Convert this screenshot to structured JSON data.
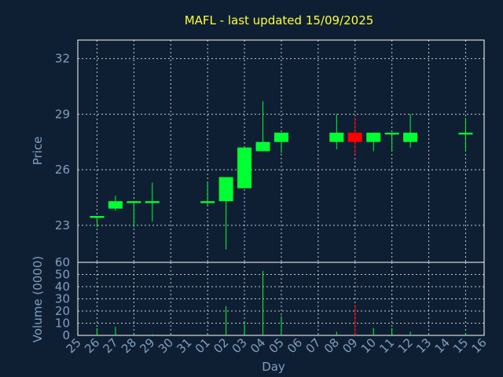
{
  "chart_data": {
    "type": "candlestick",
    "title": "MAFL - last updated 15/09/2025",
    "xlabel": "Day",
    "price_panel": {
      "ylabel": "Price",
      "ylim": [
        21,
        33
      ],
      "yticks": [
        "23",
        "26",
        "29",
        "32"
      ]
    },
    "volume_panel": {
      "ylabel": "Volume (0000)",
      "ylim": [
        0,
        60
      ],
      "yticks": [
        "0",
        "10",
        "20",
        "30",
        "40",
        "50",
        "60"
      ]
    },
    "x_ticks": [
      "25",
      "26",
      "27",
      "28",
      "29",
      "30",
      "31",
      "01",
      "02",
      "03",
      "04",
      "05",
      "06",
      "07",
      "08",
      "09",
      "10",
      "11",
      "12",
      "13",
      "14",
      "15",
      "16"
    ],
    "grid": true,
    "colors": {
      "background": "#0f1f33",
      "up": "#00ff33",
      "down": "#ff0000",
      "title": "#ffff33",
      "axis_text": "#7f9fbf",
      "frame": "#ffffff",
      "grid": "#ffffff"
    },
    "candles": [
      {
        "day": "26",
        "open": 23.4,
        "high": 23.5,
        "low": 22.9,
        "close": 23.5,
        "volume": 6
      },
      {
        "day": "27",
        "open": 23.9,
        "high": 24.6,
        "low": 23.8,
        "close": 24.3,
        "volume": 7
      },
      {
        "day": "28",
        "open": 24.2,
        "high": 24.3,
        "low": 22.9,
        "close": 24.3,
        "volume": 1
      },
      {
        "day": "29",
        "open": 24.2,
        "high": 25.3,
        "low": 23.2,
        "close": 24.3,
        "volume": 1
      },
      {
        "day": "01",
        "open": 24.2,
        "high": 25.3,
        "low": 24.1,
        "close": 24.3,
        "volume": 1
      },
      {
        "day": "02",
        "open": 24.3,
        "high": 25.6,
        "low": 21.7,
        "close": 25.6,
        "volume": 24
      },
      {
        "day": "03",
        "open": 25.0,
        "high": 27.2,
        "low": 25.0,
        "close": 27.2,
        "volume": 10
      },
      {
        "day": "04",
        "open": 27.0,
        "high": 29.7,
        "low": 27.0,
        "close": 27.5,
        "volume": 53
      },
      {
        "day": "05",
        "open": 27.5,
        "high": 28.0,
        "low": 26.9,
        "close": 28.0,
        "volume": 16
      },
      {
        "day": "08",
        "open": 27.5,
        "high": 29.0,
        "low": 27.1,
        "close": 28.0,
        "volume": 3
      },
      {
        "day": "09",
        "open": 28.0,
        "high": 28.8,
        "low": 26.8,
        "close": 27.5,
        "volume": 25
      },
      {
        "day": "10",
        "open": 27.5,
        "high": 28.0,
        "low": 27.0,
        "close": 28.0,
        "volume": 6
      },
      {
        "day": "11",
        "open": 27.9,
        "high": 28.0,
        "low": 27.0,
        "close": 28.0,
        "volume": 6
      },
      {
        "day": "12",
        "open": 27.5,
        "high": 29.0,
        "low": 27.2,
        "close": 28.0,
        "volume": 3
      },
      {
        "day": "15",
        "open": 27.9,
        "high": 28.8,
        "low": 27.0,
        "close": 28.0,
        "volume": 2
      }
    ]
  }
}
